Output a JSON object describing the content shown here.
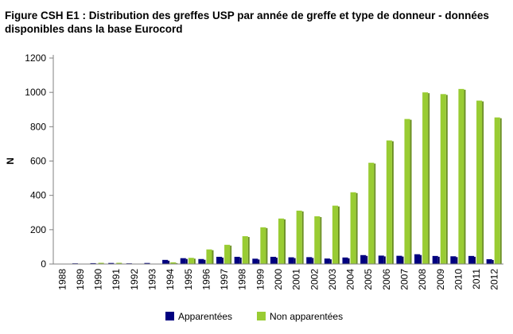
{
  "title": "Figure CSH E1 : Distribution des greffes USP par année de greffe et type de donneur - données disponibles dans la base Eurocord",
  "chart_data": {
    "type": "bar",
    "title": "Figure CSH E1 : Distribution des greffes USP par année de greffe et type de donneur - données disponibles dans la base Eurocord",
    "xlabel": "",
    "ylabel": "N",
    "ylim": [
      0,
      1200
    ],
    "yticks": [
      0,
      200,
      400,
      600,
      800,
      1000,
      1200
    ],
    "grid": false,
    "legend_position": "bottom",
    "categories": [
      "1988",
      "1989",
      "1990",
      "1991",
      "1992",
      "1993",
      "1994",
      "1995",
      "1996",
      "1997",
      "1998",
      "1999",
      "2000",
      "2001",
      "2002",
      "2003",
      "2004",
      "2005",
      "2006",
      "2007",
      "2008",
      "2009",
      "2010",
      "2011",
      "2012"
    ],
    "series": [
      {
        "name": "Apparentées",
        "color": "#000080",
        "values": [
          2,
          4,
          5,
          6,
          4,
          6,
          24,
          34,
          29,
          42,
          42,
          31,
          42,
          39,
          40,
          32,
          38,
          52,
          49,
          48,
          57,
          47,
          45,
          47,
          28
        ]
      },
      {
        "name": "Non apparentées",
        "color": "#99cc33",
        "values": [
          0,
          0,
          7,
          7,
          0,
          0,
          10,
          36,
          85,
          112,
          162,
          214,
          265,
          311,
          278,
          340,
          418,
          590,
          720,
          845,
          1000,
          990,
          1020,
          952,
          854
        ]
      }
    ]
  }
}
